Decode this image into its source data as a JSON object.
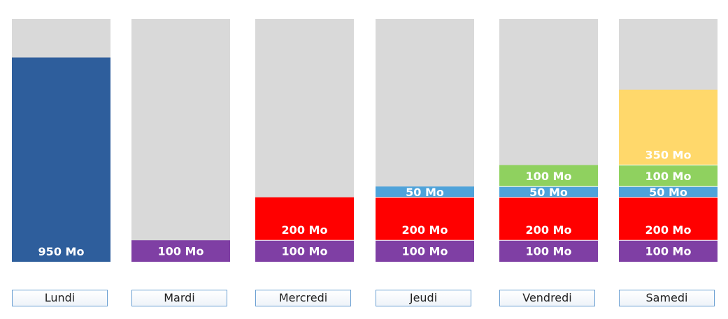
{
  "chart_data": {
    "type": "bar",
    "stacked": true,
    "unit": "Mo",
    "categories": [
      "Lundi",
      "Mardi",
      "Mercredi",
      "Jeudi",
      "Vendredi",
      "Samedi"
    ],
    "ylim": [
      0,
      1000
    ],
    "background_color": "#d9d9d9",
    "columns": [
      {
        "day": "Lundi",
        "segments": [
          {
            "value": 950,
            "label": "950 Mo",
            "color": "#2e5e9c"
          }
        ]
      },
      {
        "day": "Mardi",
        "segments": [
          {
            "value": 100,
            "label": "100 Mo",
            "color": "#7f3fa4"
          }
        ]
      },
      {
        "day": "Mercredi",
        "segments": [
          {
            "value": 100,
            "label": "100 Mo",
            "color": "#7f3fa4"
          },
          {
            "value": 200,
            "label": "200 Mo",
            "color": "#ff0000"
          }
        ]
      },
      {
        "day": "Jeudi",
        "segments": [
          {
            "value": 100,
            "label": "100 Mo",
            "color": "#7f3fa4"
          },
          {
            "value": 200,
            "label": "200 Mo",
            "color": "#ff0000"
          },
          {
            "value": 50,
            "label": "50 Mo",
            "color": "#4fa3da"
          }
        ]
      },
      {
        "day": "Vendredi",
        "segments": [
          {
            "value": 100,
            "label": "100 Mo",
            "color": "#7f3fa4"
          },
          {
            "value": 200,
            "label": "200 Mo",
            "color": "#ff0000"
          },
          {
            "value": 50,
            "label": "50 Mo",
            "color": "#4fa3da"
          },
          {
            "value": 100,
            "label": "100 Mo",
            "color": "#8fd15f"
          }
        ]
      },
      {
        "day": "Samedi",
        "segments": [
          {
            "value": 100,
            "label": "100 Mo",
            "color": "#7f3fa4"
          },
          {
            "value": 200,
            "label": "200 Mo",
            "color": "#ff0000"
          },
          {
            "value": 50,
            "label": "50 Mo",
            "color": "#4fa3da"
          },
          {
            "value": 100,
            "label": "100 Mo",
            "color": "#8fd15f"
          },
          {
            "value": 350,
            "label": "350 Mo",
            "color": "#ffd86b"
          }
        ]
      }
    ]
  }
}
